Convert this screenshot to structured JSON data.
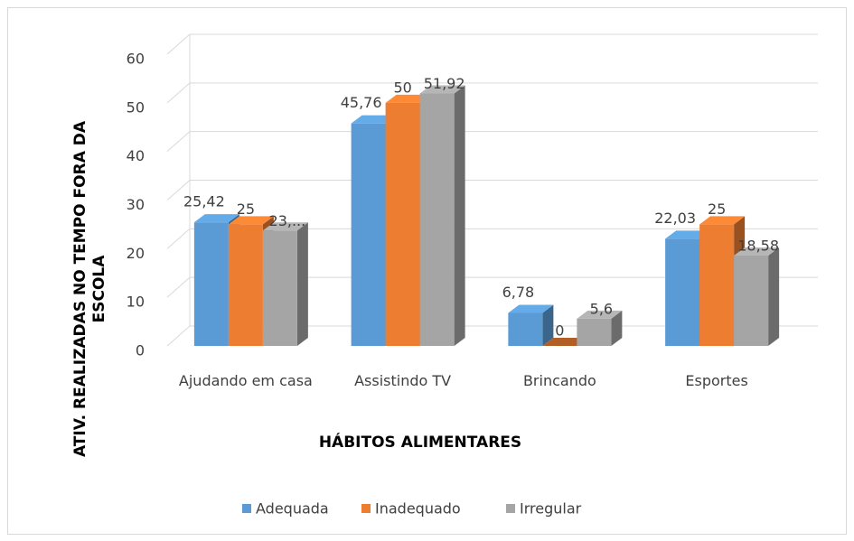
{
  "chart_data": {
    "type": "bar3d",
    "categories": [
      "Ajudando em casa",
      "Assistindo TV",
      "Brincando",
      "Esportes"
    ],
    "series": [
      {
        "name": "Adequada",
        "color": "#5b9bd5",
        "values": [
          25.42,
          45.76,
          6.78,
          22.03
        ],
        "value_labels": [
          "25,42",
          "45,76",
          "6,78",
          "22,03"
        ]
      },
      {
        "name": "Inadequado",
        "color": "#ed7d31",
        "values": [
          25,
          50,
          0,
          25
        ],
        "value_labels": [
          "25",
          "50",
          "0",
          "25"
        ]
      },
      {
        "name": "Irregular",
        "color": "#a5a5a5",
        "values": [
          23.73,
          51.92,
          5.6,
          18.58
        ],
        "value_labels": [
          "23,...",
          "51,92",
          "5,6",
          "18,58"
        ]
      }
    ],
    "ylabel": "ATIV. REALIZADAS NO TEMPO FORA DA ESCOLA",
    "xlabel": "HÁBITOS ALIMENTARES",
    "ylim": [
      0,
      60
    ],
    "yticks": [
      0,
      10,
      20,
      30,
      40,
      50,
      60
    ],
    "grid": true,
    "legend": "bottom"
  }
}
